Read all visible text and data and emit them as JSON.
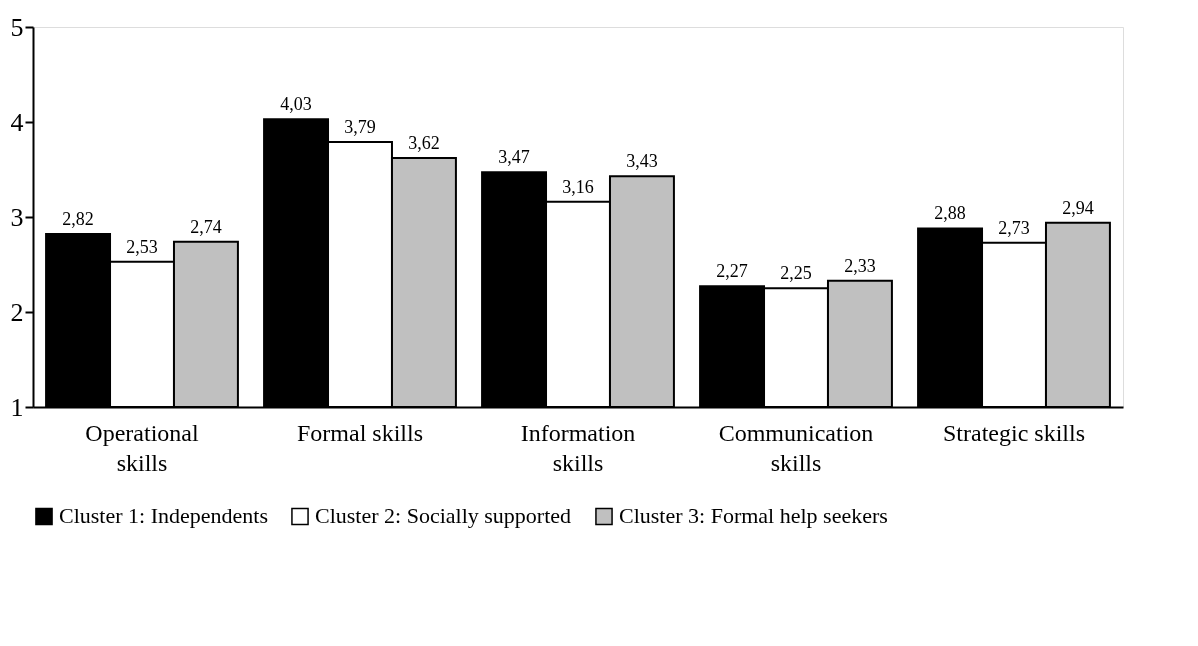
{
  "chart_data": {
    "type": "bar",
    "categories": [
      "Operational\nskills",
      "Formal skills",
      "Information\nskills",
      "Communication\nskills",
      "Strategic skills"
    ],
    "series": [
      {
        "name": "Cluster 1: Independents",
        "color": "#000000",
        "values": [
          2.82,
          4.03,
          3.47,
          2.27,
          2.88
        ],
        "value_labels": [
          "2,82",
          "4,03",
          "3,47",
          "2,27",
          "2,88"
        ]
      },
      {
        "name": "Cluster 2: Socially supported",
        "color": "#ffffff",
        "values": [
          2.53,
          3.79,
          3.16,
          2.25,
          2.73
        ],
        "value_labels": [
          "2,53",
          "3,79",
          "3,16",
          "2,25",
          "2,73"
        ]
      },
      {
        "name": "Cluster 3: Formal help seekers",
        "color": "#c0c0c0",
        "values": [
          2.74,
          3.62,
          3.43,
          2.33,
          2.94
        ],
        "value_labels": [
          "2,74",
          "3,62",
          "3,43",
          "2,33",
          "2,94"
        ]
      }
    ],
    "ylim": [
      1,
      5
    ],
    "yticks": [
      1,
      2,
      3,
      4,
      5
    ],
    "grid": false,
    "legend": "bottom"
  }
}
